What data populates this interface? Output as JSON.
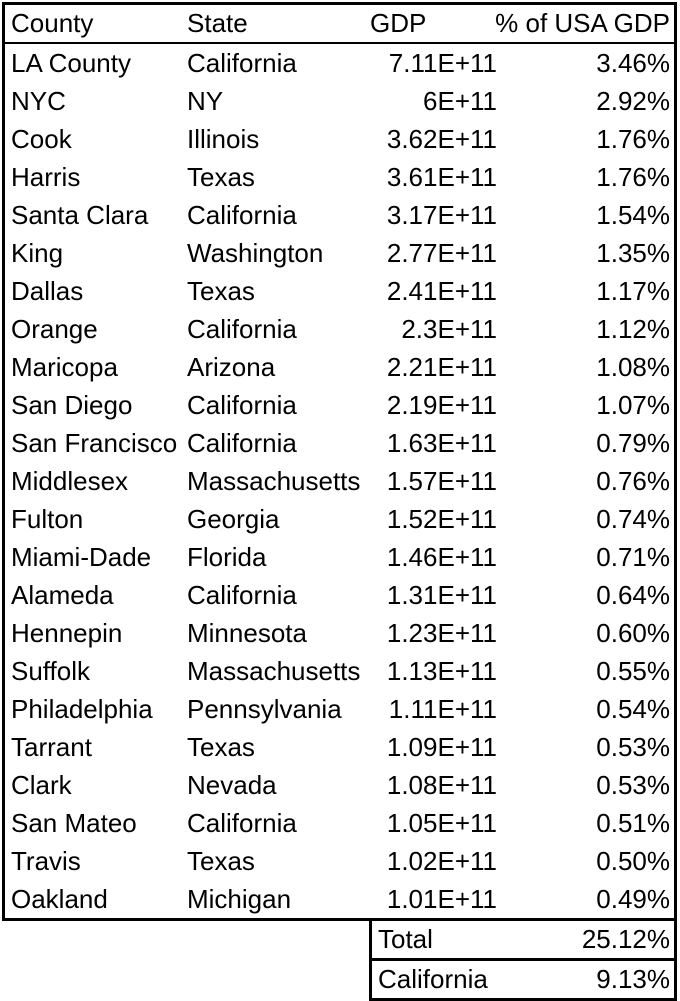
{
  "colors": {
    "border": "#000000",
    "text": "#000000",
    "background": "#ffffff"
  },
  "summary": {
    "total_label": "Total",
    "total_value": "25.12%",
    "california_label": "California",
    "california_value": "9.13%"
  },
  "chart_data": {
    "type": "table",
    "columns": [
      "County",
      "State",
      "GDP",
      "% of USA GDP"
    ],
    "rows": [
      [
        "LA County",
        "California",
        "7.11E+11",
        "3.46%"
      ],
      [
        "NYC",
        "NY",
        "6E+11",
        "2.92%"
      ],
      [
        "Cook",
        "Illinois",
        "3.62E+11",
        "1.76%"
      ],
      [
        "Harris",
        "Texas",
        "3.61E+11",
        "1.76%"
      ],
      [
        "Santa Clara",
        "California",
        "3.17E+11",
        "1.54%"
      ],
      [
        "King",
        "Washington",
        "2.77E+11",
        "1.35%"
      ],
      [
        "Dallas",
        "Texas",
        "2.41E+11",
        "1.17%"
      ],
      [
        "Orange",
        "California",
        "2.3E+11",
        "1.12%"
      ],
      [
        "Maricopa",
        "Arizona",
        "2.21E+11",
        "1.08%"
      ],
      [
        "San Diego",
        "California",
        "2.19E+11",
        "1.07%"
      ],
      [
        "San Francisco",
        "California",
        "1.63E+11",
        "0.79%"
      ],
      [
        "Middlesex",
        "Massachusetts",
        "1.57E+11",
        "0.76%"
      ],
      [
        "Fulton",
        "Georgia",
        "1.52E+11",
        "0.74%"
      ],
      [
        "Miami-Dade",
        "Florida",
        "1.46E+11",
        "0.71%"
      ],
      [
        "Alameda",
        "California",
        "1.31E+11",
        "0.64%"
      ],
      [
        "Hennepin",
        "Minnesota",
        "1.23E+11",
        "0.60%"
      ],
      [
        "Suffolk",
        "Massachusetts",
        "1.13E+11",
        "0.55%"
      ],
      [
        "Philadelphia",
        "Pennsylvania",
        "1.11E+11",
        "0.54%"
      ],
      [
        "Tarrant",
        "Texas",
        "1.09E+11",
        "0.53%"
      ],
      [
        "Clark",
        "Nevada",
        "1.08E+11",
        "0.53%"
      ],
      [
        "San Mateo",
        "California",
        "1.05E+11",
        "0.51%"
      ],
      [
        "Travis",
        "Texas",
        "1.02E+11",
        "0.50%"
      ],
      [
        "Oakland",
        "Michigan",
        "1.01E+11",
        "0.49%"
      ]
    ],
    "summary_rows": [
      [
        "Total",
        "25.12%"
      ],
      [
        "California",
        "9.13%"
      ]
    ],
    "legend": "none",
    "grid": "outer-border-and-header-separator-only"
  }
}
